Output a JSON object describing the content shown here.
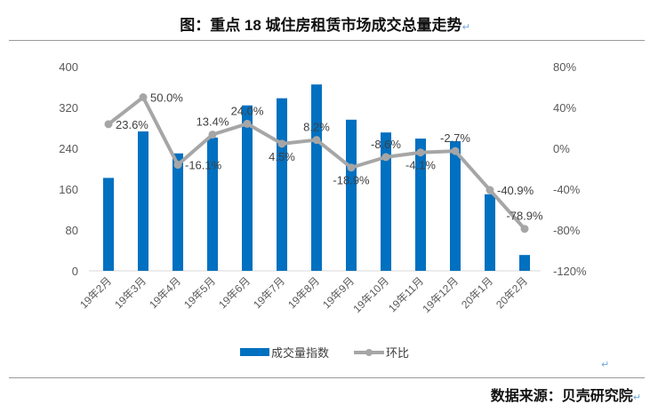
{
  "title": "图：重点 18 城住房租赁市场成交总量走势",
  "source": "数据来源：贝壳研究院",
  "return_mark": "↵",
  "chart_data": {
    "type": "bar+line",
    "categories": [
      "19年2月",
      "19年3月",
      "19年4月",
      "19年5月",
      "19年6月",
      "19年7月",
      "19年8月",
      "19年9月",
      "19年10月",
      "19年11月",
      "19年12月",
      "20年1月",
      "20年2月"
    ],
    "series": [
      {
        "name": "成交量指数",
        "type": "bar",
        "axis": "left",
        "color": "#0070c0",
        "values": [
          182,
          273,
          230,
          261,
          324,
          338,
          365,
          296,
          271,
          259,
          254,
          150,
          31
        ]
      },
      {
        "name": "环比",
        "type": "line",
        "axis": "right",
        "color": "#a6a6a6",
        "values": [
          23.6,
          50.0,
          -16.1,
          13.4,
          24.0,
          4.5,
          8.2,
          -18.9,
          -8.6,
          -4.1,
          -2.7,
          -40.9,
          -78.9
        ],
        "labels": [
          "23.6%",
          "50.0%",
          "-16.1%",
          "13.4%",
          "24.0%",
          "4.5%",
          "8.2%",
          "-18.9%",
          "-8.6%",
          "-4.1%",
          "-2.7%",
          "-40.9%",
          "-78.9%"
        ]
      }
    ],
    "left_axis": {
      "ylim": [
        0,
        400
      ],
      "ticks": [
        "0",
        "80",
        "160",
        "240",
        "320",
        "400"
      ]
    },
    "right_axis": {
      "ylim": [
        -120,
        80
      ],
      "ticks": [
        "-120%",
        "-80%",
        "-40%",
        "0%",
        "40%",
        "80%"
      ]
    },
    "grid": false,
    "legend": "bottom"
  }
}
